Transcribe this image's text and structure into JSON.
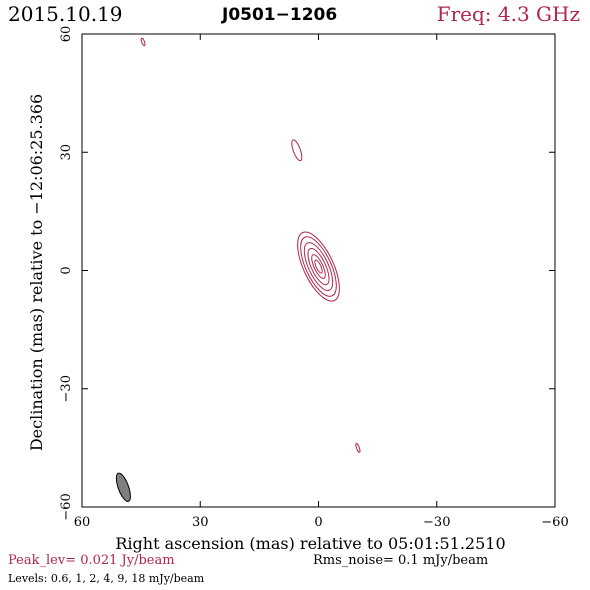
{
  "header": {
    "date": "2015.10.19",
    "source": "J0501−1206",
    "freq": "Freq: 4.3 GHz"
  },
  "footer": {
    "peak": "Peak_lev=  0.021 Jy/beam",
    "rms": "Rms_noise=  0.1 mJy/beam",
    "levels": "Levels: 0.6,   1,   2,   4,   9,   18 mJy/beam"
  },
  "colors": {
    "contour": "#b0274a",
    "beam_fill": "#808080",
    "axes": "#000000"
  },
  "chart_data": {
    "type": "contour",
    "xlabel": "Right ascension (mas) relative to 05:01:51.2510",
    "ylabel": "Declination (mas) relative to −12:06:25.366",
    "xlim": [
      60,
      -60
    ],
    "ylim": [
      -60,
      60
    ],
    "xticks": [
      60,
      30,
      0,
      -30,
      -60
    ],
    "yticks": [
      -60,
      -30,
      0,
      30,
      60
    ],
    "xtick_labels": [
      "60",
      "30",
      "0",
      "−30",
      "−60"
    ],
    "ytick_labels": [
      "−60",
      "−30",
      "0",
      "30",
      "60"
    ],
    "levels_mJy": [
      0.6,
      1,
      2,
      4,
      9,
      18
    ],
    "peak_Jy_per_beam": 0.021,
    "rms_mJy_per_beam": 0.1,
    "components": [
      {
        "name": "core",
        "x": 0,
        "y": 1,
        "pa_deg": 25,
        "contours": [
          {
            "a": 9.5,
            "b": 3.8
          },
          {
            "a": 8.2,
            "b": 3.2
          },
          {
            "a": 6.6,
            "b": 2.5
          },
          {
            "a": 5.0,
            "b": 1.8
          },
          {
            "a": 3.3,
            "b": 1.1
          },
          {
            "a": 1.8,
            "b": 0.6
          }
        ]
      },
      {
        "name": "blob-north",
        "x": 5.5,
        "y": 30.5,
        "pa_deg": 20,
        "contours": [
          {
            "a": 2.8,
            "b": 0.9
          }
        ]
      },
      {
        "name": "blob-top-left",
        "x": 44.5,
        "y": 58,
        "pa_deg": 20,
        "contours": [
          {
            "a": 1.0,
            "b": 0.35
          }
        ]
      },
      {
        "name": "blob-south-east",
        "x": -10,
        "y": -45,
        "pa_deg": 20,
        "contours": [
          {
            "a": 1.2,
            "b": 0.35
          }
        ]
      }
    ],
    "beam": {
      "x": 49.5,
      "y": -55,
      "a": 3.8,
      "b": 1.3,
      "pa_deg": 20
    }
  }
}
